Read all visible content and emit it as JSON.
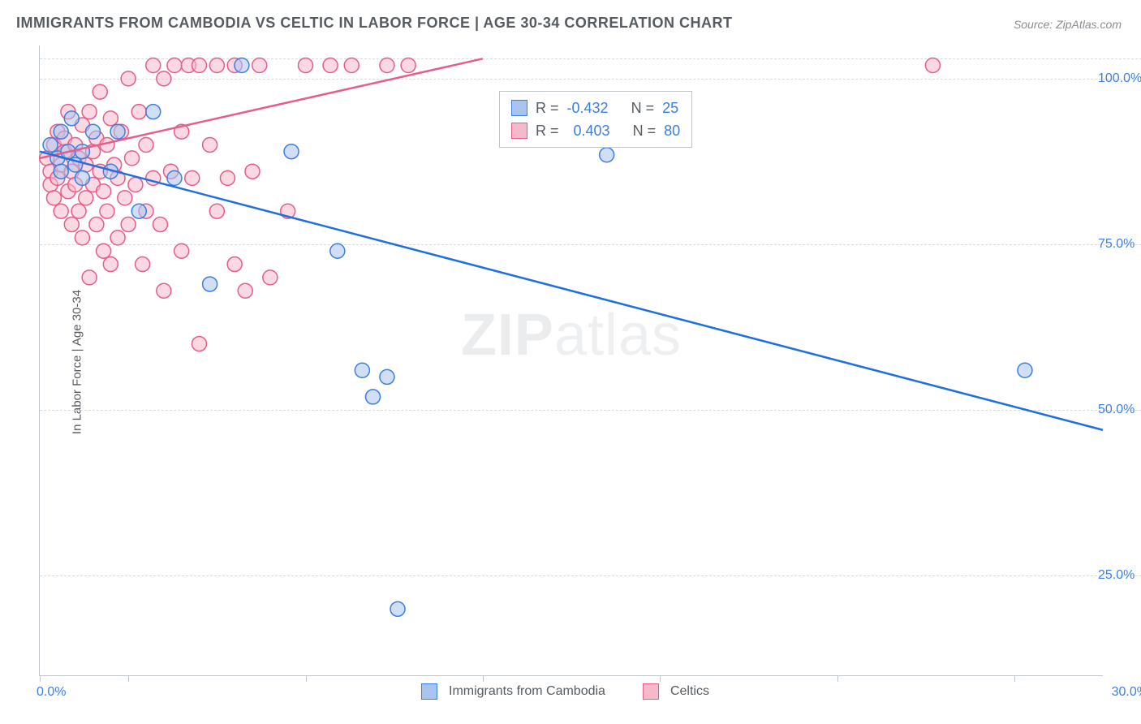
{
  "title": "IMMIGRANTS FROM CAMBODIA VS CELTIC IN LABOR FORCE | AGE 30-34 CORRELATION CHART",
  "source_label": "Source: ZipAtlas.com",
  "ylabel": "In Labor Force | Age 30-34",
  "watermark_bold": "ZIP",
  "watermark_thin": "atlas",
  "chart": {
    "type": "scatter+regression",
    "xlim": [
      0,
      30
    ],
    "ylim": [
      10,
      105
    ],
    "yticks": [
      25,
      50,
      75,
      100
    ],
    "ytick_labels": [
      "25.0%",
      "50.0%",
      "75.0%",
      "100.0%"
    ],
    "xticks": [
      0,
      2.5,
      7.5,
      12.5,
      17.5,
      22.5,
      27.5
    ],
    "x_origin_label": "0.0%",
    "x_max_label": "30.0%",
    "grid_color": "#d9dcde",
    "axis_color": "#bfc4c8",
    "background_color": "#ffffff",
    "tick_label_color": "#3d7fe0",
    "series": [
      {
        "id": "cambodia",
        "legend_label": "Immigrants from Cambodia",
        "marker_fill": "#a9c5ef",
        "marker_stroke": "#3d7fe0",
        "marker_fill_opacity": 0.55,
        "marker_radius": 9,
        "line_color": "#1e6fe0",
        "line_width": 2.5,
        "regression": {
          "x1": 0,
          "y1": 89,
          "x2": 30,
          "y2": 47
        },
        "R": "-0.432",
        "N": "25",
        "points": [
          [
            0.3,
            90
          ],
          [
            0.5,
            88
          ],
          [
            0.6,
            92
          ],
          [
            0.6,
            86
          ],
          [
            0.8,
            89
          ],
          [
            0.9,
            94
          ],
          [
            1.0,
            87
          ],
          [
            1.2,
            89
          ],
          [
            1.2,
            85
          ],
          [
            1.5,
            92
          ],
          [
            2.0,
            86
          ],
          [
            2.2,
            92
          ],
          [
            2.8,
            80
          ],
          [
            3.2,
            95
          ],
          [
            3.8,
            85
          ],
          [
            4.8,
            69
          ],
          [
            5.7,
            102
          ],
          [
            7.1,
            89
          ],
          [
            8.4,
            74
          ],
          [
            9.1,
            56
          ],
          [
            9.8,
            55
          ],
          [
            9.4,
            52
          ],
          [
            10.1,
            20
          ],
          [
            16.0,
            88.5
          ],
          [
            27.8,
            56
          ]
        ]
      },
      {
        "id": "celtic",
        "legend_label": "Celtics",
        "marker_fill": "#f6b9ca",
        "marker_stroke": "#e75c8a",
        "marker_fill_opacity": 0.55,
        "marker_radius": 9,
        "line_color": "#e75c8a",
        "line_width": 2.5,
        "regression": {
          "x1": 0,
          "y1": 88,
          "x2": 12.5,
          "y2": 103
        },
        "R": "0.403",
        "N": "80",
        "points": [
          [
            0.2,
            88
          ],
          [
            0.3,
            86
          ],
          [
            0.3,
            84
          ],
          [
            0.4,
            90
          ],
          [
            0.4,
            82
          ],
          [
            0.5,
            92
          ],
          [
            0.5,
            85
          ],
          [
            0.6,
            87
          ],
          [
            0.6,
            80
          ],
          [
            0.7,
            89
          ],
          [
            0.7,
            91
          ],
          [
            0.8,
            83
          ],
          [
            0.8,
            95
          ],
          [
            0.9,
            86
          ],
          [
            0.9,
            78
          ],
          [
            1.0,
            90
          ],
          [
            1.0,
            84
          ],
          [
            1.1,
            88
          ],
          [
            1.1,
            80
          ],
          [
            1.2,
            93
          ],
          [
            1.2,
            76
          ],
          [
            1.3,
            87
          ],
          [
            1.3,
            82
          ],
          [
            1.4,
            95
          ],
          [
            1.4,
            70
          ],
          [
            1.5,
            89
          ],
          [
            1.5,
            84
          ],
          [
            1.6,
            91
          ],
          [
            1.6,
            78
          ],
          [
            1.7,
            86
          ],
          [
            1.7,
            98
          ],
          [
            1.8,
            83
          ],
          [
            1.8,
            74
          ],
          [
            1.9,
            90
          ],
          [
            1.9,
            80
          ],
          [
            2.0,
            94
          ],
          [
            2.0,
            72
          ],
          [
            2.1,
            87
          ],
          [
            2.2,
            85
          ],
          [
            2.2,
            76
          ],
          [
            2.3,
            92
          ],
          [
            2.4,
            82
          ],
          [
            2.5,
            100
          ],
          [
            2.5,
            78
          ],
          [
            2.6,
            88
          ],
          [
            2.7,
            84
          ],
          [
            2.8,
            95
          ],
          [
            2.9,
            72
          ],
          [
            3.0,
            90
          ],
          [
            3.0,
            80
          ],
          [
            3.2,
            102
          ],
          [
            3.2,
            85
          ],
          [
            3.4,
            78
          ],
          [
            3.5,
            100
          ],
          [
            3.5,
            68
          ],
          [
            3.7,
            86
          ],
          [
            3.8,
            102
          ],
          [
            4.0,
            74
          ],
          [
            4.0,
            92
          ],
          [
            4.2,
            102
          ],
          [
            4.3,
            85
          ],
          [
            4.5,
            102
          ],
          [
            4.5,
            60
          ],
          [
            4.8,
            90
          ],
          [
            5.0,
            102
          ],
          [
            5.0,
            80
          ],
          [
            5.3,
            85
          ],
          [
            5.5,
            102
          ],
          [
            5.5,
            72
          ],
          [
            5.8,
            68
          ],
          [
            6.0,
            86
          ],
          [
            6.2,
            102
          ],
          [
            6.5,
            70
          ],
          [
            7.0,
            80
          ],
          [
            7.5,
            102
          ],
          [
            8.2,
            102
          ],
          [
            8.8,
            102
          ],
          [
            9.8,
            102
          ],
          [
            10.4,
            102
          ],
          [
            25.2,
            102
          ]
        ]
      }
    ]
  },
  "legend_top": {
    "R_label": "R =",
    "N_label": "N ="
  }
}
